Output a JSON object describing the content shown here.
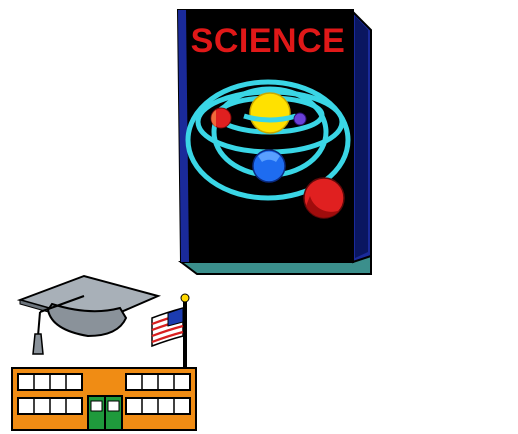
{
  "book": {
    "title": "SCIENCE"
  },
  "colors": {
    "background": "#ffffff",
    "book_cover": "#000000",
    "book_spine": "#1a2a9a",
    "book_pages": "#3b8f8c",
    "title_red": "#e01818",
    "orbit_cyan": "#3ad6e6",
    "sun_yellow": "#ffe100",
    "planet_red": "#e02020",
    "planet_blue": "#1e6cf0",
    "planet_purple": "#6a40d8",
    "cap_gray": "#a8b0b8",
    "school_orange": "#f08c14",
    "door_green": "#1f9a3c",
    "flag_red": "#d82020",
    "flag_blue": "#1c3cb0"
  },
  "icons": {
    "book": "science-book-icon",
    "solar_system": "solar-system-icon",
    "graduation_cap": "graduation-cap-icon",
    "school": "school-building-icon",
    "flag": "american-flag-icon"
  }
}
